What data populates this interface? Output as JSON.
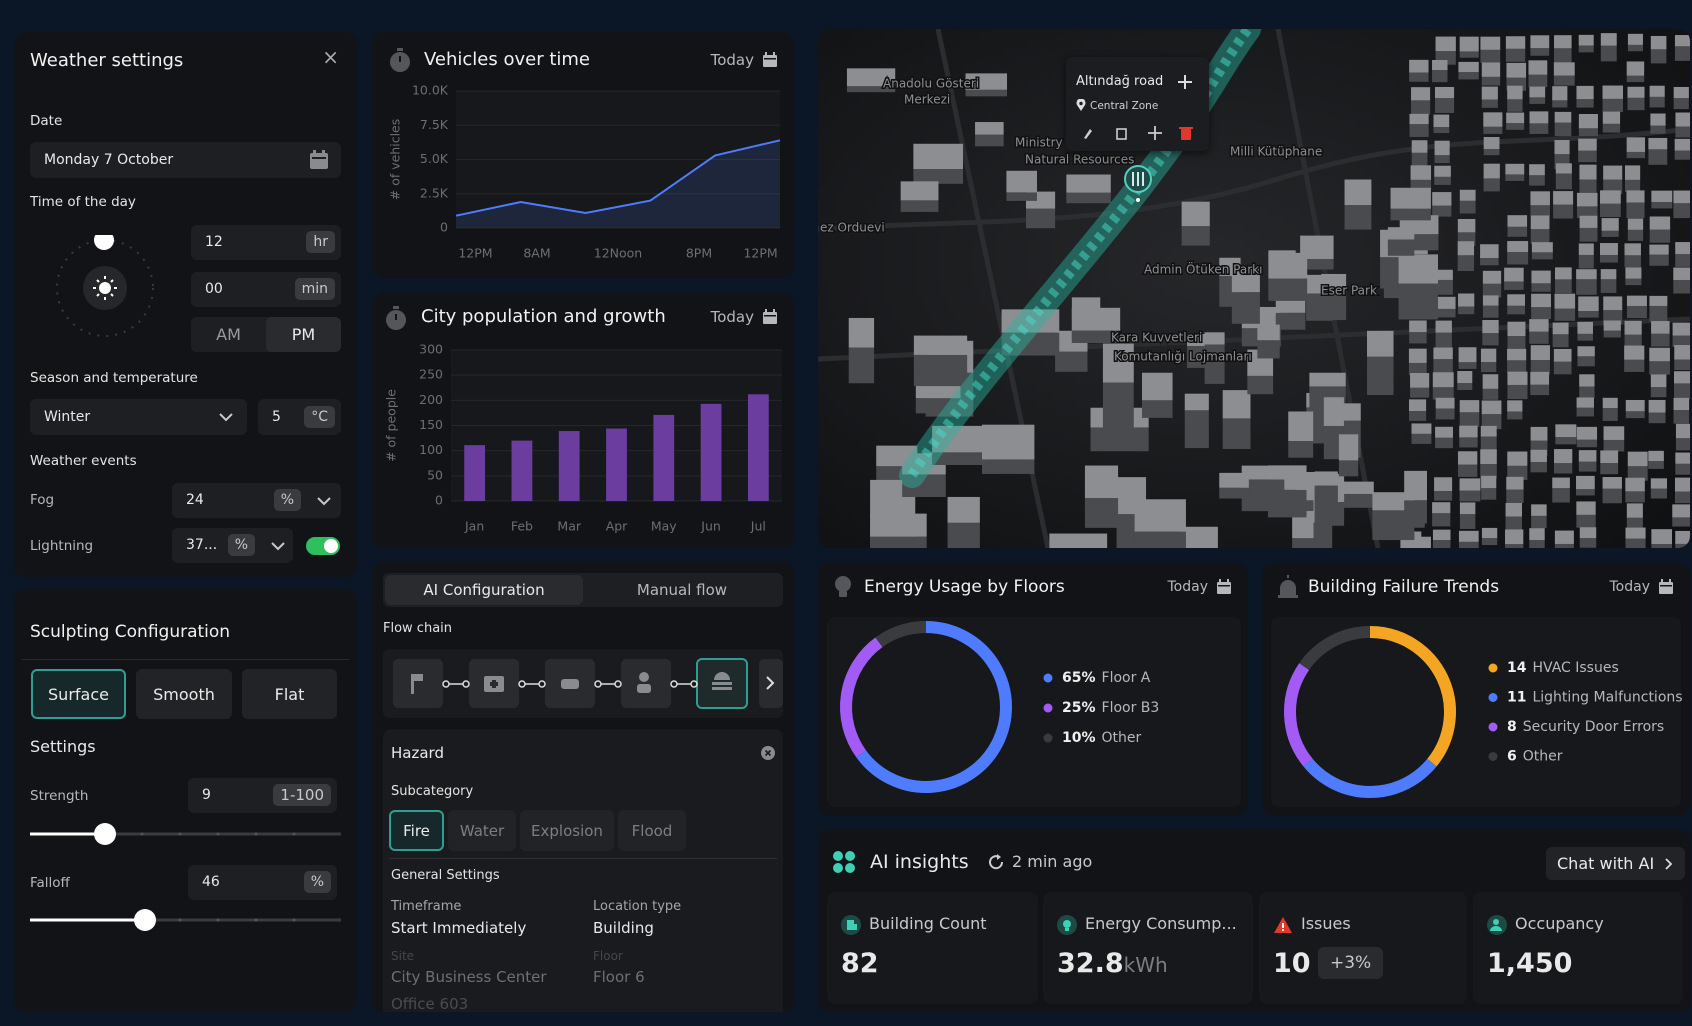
{
  "weather": {
    "title": "Weather settings",
    "close": "×",
    "date_label": "Date",
    "date": "Monday 7 October",
    "time_label": "Time of the day",
    "hour": "12",
    "hour_unit": "hr",
    "minute": "00",
    "minute_unit": "min",
    "am": "AM",
    "pm": "PM",
    "season_label": "Season and temperature",
    "season": "Winter",
    "temperature": "5",
    "temperature_unit": "°C",
    "events_label": "Weather events",
    "events": [
      {
        "name": "Fog",
        "value": "24",
        "unit": "%"
      },
      {
        "name": "Lightning",
        "value": "37...",
        "unit": "%"
      }
    ]
  },
  "sculpting": {
    "title": "Sculpting Configuration",
    "modes": [
      "Surface",
      "Smooth",
      "Flat"
    ],
    "settings_label": "Settings",
    "strength_label": "Strength",
    "strength": "9",
    "strength_range": "1-100",
    "falloff_label": "Falloff",
    "falloff": "46",
    "falloff_unit": "%"
  },
  "chart_data": [
    {
      "type": "line",
      "title": "Vehicles over time",
      "period": "Today",
      "y_label": "# of vehicles",
      "x": [
        0,
        1,
        2,
        3,
        4,
        5
      ],
      "xlim": [
        0,
        5
      ],
      "xticks": [
        {
          "value": 0.3,
          "label": "12PM"
        },
        {
          "value": 1.25,
          "label": "8AM"
        },
        {
          "value": 2.5,
          "label": "12Noon"
        },
        {
          "value": 3.75,
          "label": "8PM"
        },
        {
          "value": 4.7,
          "label": "12PM"
        }
      ],
      "series": [
        {
          "color": "#4f7cff",
          "values": [
            900,
            1900,
            1100,
            2000,
            5300,
            6400
          ]
        }
      ],
      "ylim": [
        0,
        10000
      ],
      "yticks": [
        0,
        {
          "value": 2500,
          "label": "2.5K"
        },
        {
          "value": 5000,
          "label": "5.0K"
        },
        {
          "value": 7500,
          "label": "7.5K"
        },
        {
          "value": 10000,
          "label": "10.0K"
        }
      ],
      "grid": true
    },
    {
      "type": "bar",
      "title": "City population and growth",
      "period": "Today",
      "y_label": "# of people",
      "categories": [
        "Jan",
        "Feb",
        "Mar",
        "Apr",
        "May",
        "Jun",
        "Jul"
      ],
      "values": [
        111,
        120,
        139,
        144,
        171,
        193,
        212
      ],
      "color": "#6a3d9e",
      "ylim": [
        0,
        300
      ],
      "yticks": [
        0,
        50,
        100,
        150,
        200,
        250,
        300
      ],
      "grid": true
    },
    {
      "type": "donut",
      "title": "Energy Usage by Floors",
      "period": "Today",
      "categories": [
        "Floor A",
        "Floor B3",
        "Other"
      ],
      "values": [
        65,
        25,
        10
      ],
      "value_labels": [
        "65%",
        "25%",
        "10%"
      ],
      "colors": [
        "#4f7cff",
        "#a25bf5",
        "#3a3b3f"
      ]
    },
    {
      "type": "donut",
      "title": "Building Failure Trends",
      "period": "Today",
      "categories": [
        "HVAC Issues",
        "Lighting Malfunctions",
        "Security Door Errors",
        "Other"
      ],
      "values": [
        14,
        11,
        8,
        6
      ],
      "colors": [
        "#f5a524",
        "#4f7cff",
        "#a25bf5",
        "#3a3b3f"
      ]
    }
  ],
  "ai_config": {
    "tabs": [
      "AI Configuration",
      "Manual flow"
    ],
    "flow_chain_label": "Flow chain",
    "hazard": "Hazard",
    "subcategory_label": "Subcategory",
    "subcategories": [
      "Fire",
      "Water",
      "Explosion",
      "Flood"
    ],
    "general_label": "General Settings",
    "fields": [
      {
        "label": "Timeframe",
        "value": "Start Immediately"
      },
      {
        "label": "Location type",
        "value": "Building"
      },
      {
        "label": "Site",
        "value": "City Business Center"
      },
      {
        "label": "Floor",
        "value": "Floor 6"
      }
    ],
    "office": "Office 603"
  },
  "map": {
    "popup_title": "Altındağ road",
    "popup_zone": "Central Zone",
    "labels": [
      "Anadolu Gösteri",
      "Merkezi",
      "Ministry",
      "Natural Resources",
      "Milli Kütüphane",
      "ez Orduevi",
      "Admin Ötüken Parkı",
      "Eser Park",
      "Kara Kuvvetleri",
      "Komutanlığı Lojmanları"
    ]
  },
  "insights": {
    "title": "AI insights",
    "updated": "2 min ago",
    "chat": "Chat with AI",
    "cards": [
      {
        "label": "Building Count",
        "value": "82"
      },
      {
        "label": "Energy Consump...",
        "value": "32.8",
        "unit": "kWh"
      },
      {
        "label": "Issues",
        "value": "10",
        "change": "+3%"
      },
      {
        "label": "Occupancy",
        "value": "1,450"
      }
    ]
  }
}
